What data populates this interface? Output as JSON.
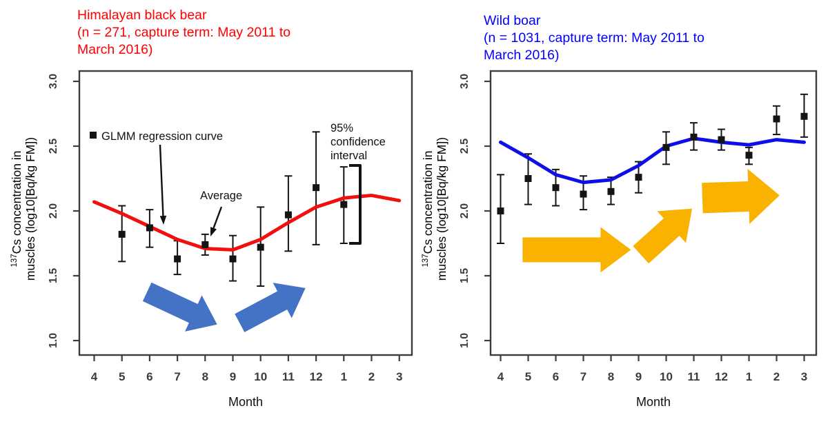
{
  "page": {
    "background": "#ffffff"
  },
  "chart_data": [
    {
      "id": "himalayan-black-bear",
      "type": "line",
      "title_lines": [
        "Himalayan black bear",
        "(n = 271, capture term: May 2011 to",
        "March 2016)"
      ],
      "title_color": "#ff0000",
      "xlabel": "Month",
      "ylabel": {
        "superscript": "137",
        "line1": "Cs concentration in",
        "line2": "muscles (log10[Bq/kg FM])"
      },
      "x_tick_labels": [
        "4",
        "5",
        "6",
        "7",
        "8",
        "9",
        "10",
        "11",
        "12",
        "1",
        "2",
        "3"
      ],
      "y_tick_labels": [
        "3.0",
        "2.5",
        "2.0",
        "1.5",
        "1.0"
      ],
      "y_tick_values": [
        3.0,
        2.5,
        2.0,
        1.5,
        1.0
      ],
      "ylim": [
        1.0,
        3.0
      ],
      "grid": false,
      "legend_position": "inside-top-left",
      "series": [
        {
          "name": "GLMM regression curve",
          "type": "curve",
          "color": "#f01010",
          "values": [
            2.07,
            1.98,
            1.88,
            1.78,
            1.71,
            1.7,
            1.78,
            1.91,
            2.03,
            2.1,
            2.12,
            2.08
          ]
        },
        {
          "name": "Average with 95% confidence interval",
          "type": "points",
          "color": "#141414",
          "points": [
            {
              "month": "5",
              "avg": 1.82,
              "lo": 1.61,
              "hi": 2.04
            },
            {
              "month": "6",
              "avg": 1.87,
              "lo": 1.72,
              "hi": 2.01
            },
            {
              "month": "7",
              "avg": 1.63,
              "lo": 1.51,
              "hi": 1.77
            },
            {
              "month": "8",
              "avg": 1.74,
              "lo": 1.66,
              "hi": 1.82
            },
            {
              "month": "9",
              "avg": 1.63,
              "lo": 1.46,
              "hi": 1.81
            },
            {
              "month": "10",
              "avg": 1.72,
              "lo": 1.42,
              "hi": 2.03
            },
            {
              "month": "11",
              "avg": 1.97,
              "lo": 1.69,
              "hi": 2.27
            },
            {
              "month": "12",
              "avg": 2.18,
              "lo": 1.74,
              "hi": 2.61
            },
            {
              "month": "1",
              "avg": 2.05,
              "lo": 1.75,
              "hi": 2.34
            }
          ]
        }
      ],
      "annotations": {
        "legend_label": "GLMM regression curve",
        "average_label": "Average",
        "ci_label_lines": [
          "95%",
          "confidence",
          "interval"
        ]
      },
      "trend_arrows": {
        "color": "#4472c4",
        "items": [
          {
            "cx": 3.17,
            "cy": 1.25,
            "angle": 25,
            "len": 112,
            "bw": 30,
            "hw": 58,
            "hl": 38
          },
          {
            "cx": 6.43,
            "cy": 1.27,
            "angle": -28,
            "len": 108,
            "bw": 30,
            "hw": 58,
            "hl": 38
          }
        ]
      }
    },
    {
      "id": "wild-boar",
      "type": "line",
      "title_lines": [
        "Wild boar",
        "(n = 1031, capture term: May 2011 to",
        "March 2016)"
      ],
      "title_color": "#0000ff",
      "xlabel": "Month",
      "ylabel": {
        "superscript": "137",
        "line1": "Cs concentration in",
        "line2": "muscles (log10[Bq/kg FM])"
      },
      "x_tick_labels": [
        "4",
        "5",
        "6",
        "7",
        "8",
        "9",
        "10",
        "11",
        "12",
        "1",
        "2",
        "3"
      ],
      "y_tick_labels": [
        "3.0",
        "2.5",
        "2.0",
        "1.5",
        "1.0"
      ],
      "y_tick_values": [
        3.0,
        2.5,
        2.0,
        1.5,
        1.0
      ],
      "ylim": [
        1.0,
        3.0
      ],
      "grid": false,
      "series": [
        {
          "name": "GLMM regression curve",
          "type": "curve",
          "color": "#0e0ee8",
          "values": [
            2.53,
            2.41,
            2.28,
            2.22,
            2.24,
            2.35,
            2.5,
            2.56,
            2.53,
            2.51,
            2.55,
            2.53
          ]
        },
        {
          "name": "Average with 95% confidence interval",
          "type": "points",
          "color": "#141414",
          "points": [
            {
              "month": "4",
              "avg": 2.0,
              "lo": 1.75,
              "hi": 2.28
            },
            {
              "month": "5",
              "avg": 2.25,
              "lo": 2.05,
              "hi": 2.44
            },
            {
              "month": "6",
              "avg": 2.18,
              "lo": 2.04,
              "hi": 2.32
            },
            {
              "month": "7",
              "avg": 2.13,
              "lo": 2.01,
              "hi": 2.27
            },
            {
              "month": "8",
              "avg": 2.15,
              "lo": 2.05,
              "hi": 2.26
            },
            {
              "month": "9",
              "avg": 2.26,
              "lo": 2.14,
              "hi": 2.38
            },
            {
              "month": "10",
              "avg": 2.49,
              "lo": 2.36,
              "hi": 2.61
            },
            {
              "month": "11",
              "avg": 2.57,
              "lo": 2.47,
              "hi": 2.68
            },
            {
              "month": "12",
              "avg": 2.55,
              "lo": 2.47,
              "hi": 2.63
            },
            {
              "month": "1",
              "avg": 2.43,
              "lo": 2.36,
              "hi": 2.49
            },
            {
              "month": "2",
              "avg": 2.71,
              "lo": 2.59,
              "hi": 2.81
            },
            {
              "month": "3",
              "avg": 2.73,
              "lo": 2.57,
              "hi": 2.9
            }
          ]
        }
      ],
      "annotations": null,
      "trend_arrows": {
        "color": "#f9b200",
        "items": [
          {
            "cx": 2.76,
            "cy": 1.7,
            "angle": 0,
            "len": 157,
            "bw": 36,
            "hw": 66,
            "hl": 44
          },
          {
            "cx": 6.01,
            "cy": 1.84,
            "angle": -42,
            "len": 100,
            "bw": 34,
            "hw": 62,
            "hl": 40
          },
          {
            "cx": 8.71,
            "cy": 2.11,
            "angle": -2,
            "len": 112,
            "bw": 44,
            "hw": 80,
            "hl": 45
          }
        ]
      }
    }
  ]
}
